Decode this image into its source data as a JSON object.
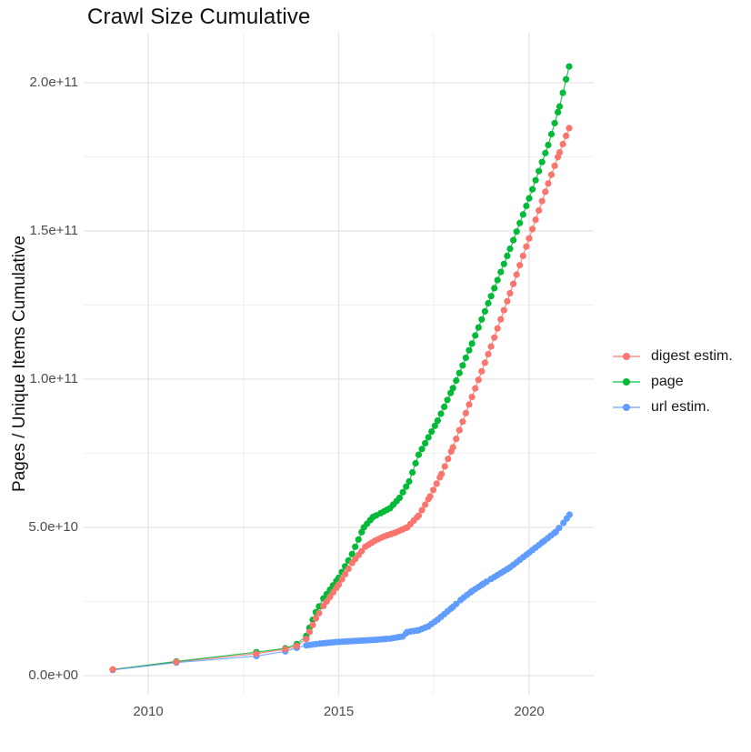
{
  "chart_data": {
    "type": "scatter",
    "title": "Crawl Size Cumulative",
    "xlabel": "",
    "ylabel": "Pages / Unique Items Cumulative",
    "legend_position": "right",
    "grid": "major and minor, light gray on white",
    "value_unit": "billions of items (1e9)",
    "xlim": [
      2008.3,
      2021.7
    ],
    "ylim_e9": [
      -10,
      216
    ],
    "x_ticks": {
      "major_labels": [
        "2010",
        "2015",
        "2020"
      ],
      "major_values": [
        2010,
        2015,
        2020
      ],
      "minor_values": [
        2012.5,
        2017.5
      ]
    },
    "y_ticks": {
      "major_labels": [
        "0.0e+00",
        "5.0e+10",
        "1.0e+11",
        "1.5e+11",
        "2.0e+11"
      ],
      "major_values_e9": [
        0,
        50,
        100,
        150,
        200
      ],
      "minor_values_e9": [
        25,
        75,
        125,
        175
      ]
    },
    "dense_dot_start_year": 2014.1,
    "dot_interval_years": 0.085,
    "series": [
      {
        "name": "digest estim.",
        "color": "#F8766D",
        "points": [
          [
            2009.07,
            2.1
          ],
          [
            2010.74,
            4.6
          ],
          [
            2012.84,
            7.4
          ],
          [
            2013.6,
            8.9
          ],
          [
            2013.9,
            10.0
          ],
          [
            2014.15,
            12.4
          ],
          [
            2014.4,
            19.3
          ],
          [
            2014.6,
            23.5
          ],
          [
            2015.0,
            30.7
          ],
          [
            2015.35,
            38.0
          ],
          [
            2015.7,
            43.5
          ],
          [
            2015.95,
            45.5
          ],
          [
            2016.2,
            47.0
          ],
          [
            2016.5,
            48.3
          ],
          [
            2016.8,
            50.0
          ],
          [
            2017.1,
            54.0
          ],
          [
            2017.4,
            60.5
          ],
          [
            2017.7,
            68.0
          ],
          [
            2018.0,
            77.0
          ],
          [
            2018.5,
            94.0
          ],
          [
            2019.0,
            111.0
          ],
          [
            2019.5,
            129.0
          ],
          [
            2020.0,
            147.5
          ],
          [
            2020.5,
            166.0
          ],
          [
            2020.8,
            176.5
          ],
          [
            2021.05,
            184.7
          ]
        ]
      },
      {
        "name": "page",
        "color": "#00BA38",
        "points": [
          [
            2009.07,
            2.0
          ],
          [
            2010.74,
            4.8
          ],
          [
            2012.84,
            7.9
          ],
          [
            2013.6,
            9.2
          ],
          [
            2013.9,
            10.6
          ],
          [
            2014.15,
            13.4
          ],
          [
            2014.4,
            21.4
          ],
          [
            2014.6,
            26.0
          ],
          [
            2015.0,
            33.0
          ],
          [
            2015.35,
            41.0
          ],
          [
            2015.66,
            50.0
          ],
          [
            2015.9,
            53.5
          ],
          [
            2016.1,
            54.8
          ],
          [
            2016.35,
            56.5
          ],
          [
            2016.6,
            60.0
          ],
          [
            2016.85,
            65.5
          ],
          [
            2017.1,
            74.5
          ],
          [
            2017.6,
            86.0
          ],
          [
            2018.0,
            97.0
          ],
          [
            2018.5,
            112.0
          ],
          [
            2019.0,
            128.0
          ],
          [
            2019.5,
            144.0
          ],
          [
            2020.0,
            161.0
          ],
          [
            2020.5,
            179.0
          ],
          [
            2020.8,
            192.0
          ],
          [
            2021.05,
            205.5
          ]
        ]
      },
      {
        "name": "url estim.",
        "color": "#619CFF",
        "points": [
          [
            2009.07,
            1.9
          ],
          [
            2010.74,
            4.4
          ],
          [
            2012.84,
            6.6
          ],
          [
            2013.6,
            8.2
          ],
          [
            2013.9,
            9.4
          ],
          [
            2014.15,
            10.2
          ],
          [
            2014.5,
            10.8
          ],
          [
            2015.0,
            11.4
          ],
          [
            2015.6,
            11.8
          ],
          [
            2016.0,
            12.1
          ],
          [
            2016.35,
            12.5
          ],
          [
            2016.68,
            13.2
          ],
          [
            2016.8,
            14.7
          ],
          [
            2017.1,
            15.3
          ],
          [
            2017.35,
            16.6
          ],
          [
            2017.6,
            18.9
          ],
          [
            2018.0,
            23.2
          ],
          [
            2018.2,
            25.5
          ],
          [
            2018.5,
            28.5
          ],
          [
            2018.8,
            31.0
          ],
          [
            2019.0,
            32.6
          ],
          [
            2019.5,
            36.5
          ],
          [
            2020.0,
            41.5
          ],
          [
            2020.4,
            45.5
          ],
          [
            2020.7,
            48.5
          ],
          [
            2020.9,
            51.5
          ],
          [
            2021.06,
            54.3
          ]
        ]
      }
    ]
  }
}
